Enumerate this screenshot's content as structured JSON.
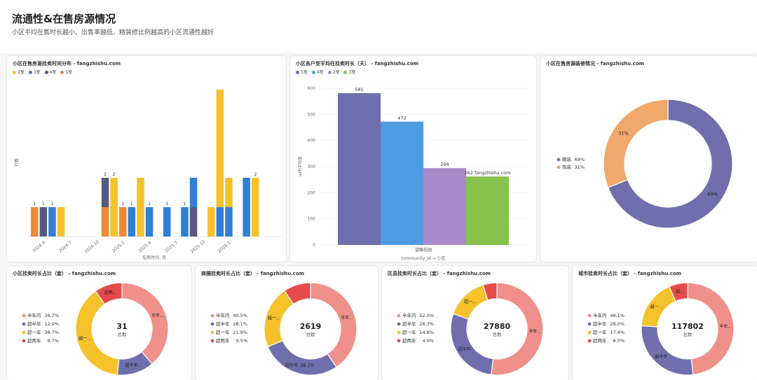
{
  "header": {
    "title": "流通性&在售房源情况",
    "subtitle": "小区平均在售时长越小、出售率越低、精装修比例越高的小区流通性越好"
  },
  "chart_data": [
    {
      "id": "listing_time_dist",
      "type": "bar",
      "title": "小区在售房源挂卖时间分布 - fangzhishu.com",
      "xlabel": "挂卖时间: 月",
      "ylabel": "行数",
      "x_ticks": [
        "2024-4",
        "2024-7",
        "2024-10",
        "2025-1",
        "2025-4",
        "2025-7",
        "2025-10",
        "2026-1"
      ],
      "series": [
        {
          "name": "2室",
          "color": "#f5c22b"
        },
        {
          "name": "3室",
          "color": "#2f80d6"
        },
        {
          "name": "4室",
          "color": "#555b80"
        },
        {
          "name": "5室",
          "color": "#ec8a38"
        }
      ],
      "ylim": [
        0,
        5
      ],
      "bars": [
        {
          "i": 0,
          "s": "5室",
          "v": 1,
          "label": "1"
        },
        {
          "i": 1,
          "s": "4室",
          "v": 1,
          "label": ""
        },
        {
          "i": 2,
          "s": "3室",
          "v": 1,
          "label": "1"
        },
        {
          "i": 3,
          "s": "2室",
          "v": 1,
          "label": ""
        },
        {
          "i": 8,
          "s": "5室",
          "v": 1,
          "label": ""
        },
        {
          "i": 8,
          "s": "4室",
          "v": 1,
          "label": "",
          "base": 1
        },
        {
          "i": 9,
          "s": "2室",
          "v": 2,
          "label": "2"
        },
        {
          "i": 10,
          "s": "5室",
          "v": 1,
          "label": ""
        },
        {
          "i": 11,
          "s": "3室",
          "v": 1,
          "label": "1"
        },
        {
          "i": 12,
          "s": "2室",
          "v": 2,
          "label": ""
        },
        {
          "i": 13,
          "s": "3室",
          "v": 1,
          "label": "1"
        },
        {
          "i": 15,
          "s": "3室",
          "v": 1,
          "label": "1"
        },
        {
          "i": 17,
          "s": "3室",
          "v": 1,
          "label": ""
        },
        {
          "i": 18,
          "s": "4室",
          "v": 1,
          "label": "1"
        },
        {
          "i": 18,
          "s": "3室",
          "v": 1,
          "label": "",
          "base": 1
        },
        {
          "i": 20,
          "s": "2室",
          "v": 1,
          "label": ""
        },
        {
          "i": 21,
          "s": "3室",
          "v": 1,
          "label": ""
        },
        {
          "i": 21,
          "s": "2室",
          "v": 4,
          "label": "",
          "base": 1
        },
        {
          "i": 22,
          "s": "3室",
          "v": 1,
          "label": ""
        },
        {
          "i": 22,
          "s": "2室",
          "v": 1,
          "label": "",
          "base": 1
        },
        {
          "i": 24,
          "s": "3室",
          "v": 2,
          "label": ""
        },
        {
          "i": 25,
          "s": "2室",
          "v": 2,
          "label": "2"
        }
      ],
      "left_labels": [
        {
          "i": 1,
          "text": "1"
        },
        {
          "i": 8,
          "text": "2"
        },
        {
          "i": 10,
          "text": "1"
        },
        {
          "i": 17,
          "text": "1"
        }
      ]
    },
    {
      "id": "avg_listing_days",
      "type": "bar",
      "title": "小区各户型平均在挂卖时长（天） - fangzhishu.com",
      "xlabel": "community_id → 小区",
      "ylabel": "ud的平均值",
      "categories": [
        "望馨花园"
      ],
      "ylim": [
        0,
        600
      ],
      "y_ticks": [
        0,
        100,
        200,
        300,
        400,
        500,
        600
      ],
      "series": [
        {
          "name": "5室",
          "values": [
            581
          ],
          "color": "#6f6fad",
          "label": "581"
        },
        {
          "name": "4室",
          "values": [
            472
          ],
          "color": "#4e9de3",
          "label": "472"
        },
        {
          "name": "2室",
          "values": [
            294
          ],
          "color": "#a889c9",
          "label": "294"
        },
        {
          "name": "3室",
          "values": [
            262
          ],
          "color": "#86c24c",
          "label": "262 fangzhishu.com"
        }
      ]
    },
    {
      "id": "decoration",
      "type": "pie",
      "title": "小区在售房源装修情况 - fangzhishu.com",
      "slices": [
        {
          "label": "精装",
          "value": 69,
          "pct": "69%",
          "color": "#6f6fad"
        },
        {
          "label": "简装",
          "value": 31,
          "pct": "31%",
          "color": "#f0a86c"
        }
      ]
    },
    {
      "id": "community_ratio",
      "type": "pie",
      "title": "小区挂卖时长占比（套） - fangzhishu.com",
      "total": "31",
      "total_label": "总数",
      "slices": [
        {
          "label": "半年内",
          "value": 38.7,
          "pct": "38.7%",
          "color": "#f0908a",
          "arc_label": "半年..."
        },
        {
          "label": "超半年",
          "value": 12.9,
          "pct": "12.9%",
          "color": "#6f6fad",
          "arc_label": "超半年..."
        },
        {
          "label": "超一年",
          "value": 38.7,
          "pct": "38.7%",
          "color": "#f5c22b",
          "arc_label": "超一..."
        },
        {
          "label": "超两年",
          "value": 9.7,
          "pct": "9.7%",
          "color": "#e64b4b",
          "arc_label": "超两..."
        }
      ]
    },
    {
      "id": "district_ratio",
      "type": "pie",
      "title": "商圈挂卖时长占比（套） - fangzhishu.com",
      "total": "2619",
      "total_label": "总数",
      "slices": [
        {
          "label": "半年内",
          "value": 40.5,
          "pct": "40.5%",
          "color": "#f0908a",
          "arc_label": "半年..."
        },
        {
          "label": "超半年",
          "value": 28.1,
          "pct": "28.1%",
          "color": "#6f6fad",
          "arc_label": "超半年: 28.1%"
        },
        {
          "label": "超一年",
          "value": 21.8,
          "pct": "21.8%",
          "color": "#f5c22b",
          "arc_label": "超一..."
        },
        {
          "label": "超两年",
          "value": 9.5,
          "pct": "9.5%",
          "color": "#e64b4b",
          "arc_label": ""
        }
      ]
    },
    {
      "id": "county_ratio",
      "type": "pie",
      "title": "区县挂卖时长占比（套） - fangzhishu.com",
      "total": "27880",
      "total_label": "总数",
      "slices": [
        {
          "label": "半年内",
          "value": 52.0,
          "pct": "52.0%",
          "color": "#f0908a",
          "arc_label": "半年..."
        },
        {
          "label": "超半年",
          "value": 28.3,
          "pct": "28.3%",
          "color": "#6f6fad",
          "arc_label": "超半年"
        },
        {
          "label": "超一年",
          "value": 14.8,
          "pct": "14.8%",
          "color": "#f5c22b",
          "arc_label": "超一..."
        },
        {
          "label": "超两年",
          "value": 4.9,
          "pct": "4.9%",
          "color": "#e64b4b",
          "arc_label": ""
        }
      ]
    },
    {
      "id": "city_ratio",
      "type": "pie",
      "title": "城市挂卖时长占比（套） - fangzhishu.com",
      "total": "117802",
      "total_label": "总数",
      "slices": [
        {
          "label": "半年内",
          "value": 48.1,
          "pct": "48.1%",
          "color": "#f0908a",
          "arc_label": "半年..."
        },
        {
          "label": "超半年",
          "value": 28.0,
          "pct": "28.0%",
          "color": "#6f6fad",
          "arc_label": "超半年"
        },
        {
          "label": "超一年",
          "value": 17.4,
          "pct": "17.4%",
          "color": "#f5c22b",
          "arc_label": "超一..."
        },
        {
          "label": "超两年",
          "value": 6.5,
          "pct": "6.5%",
          "color": "#e64b4b",
          "arc_label": "超..."
        }
      ]
    }
  ]
}
